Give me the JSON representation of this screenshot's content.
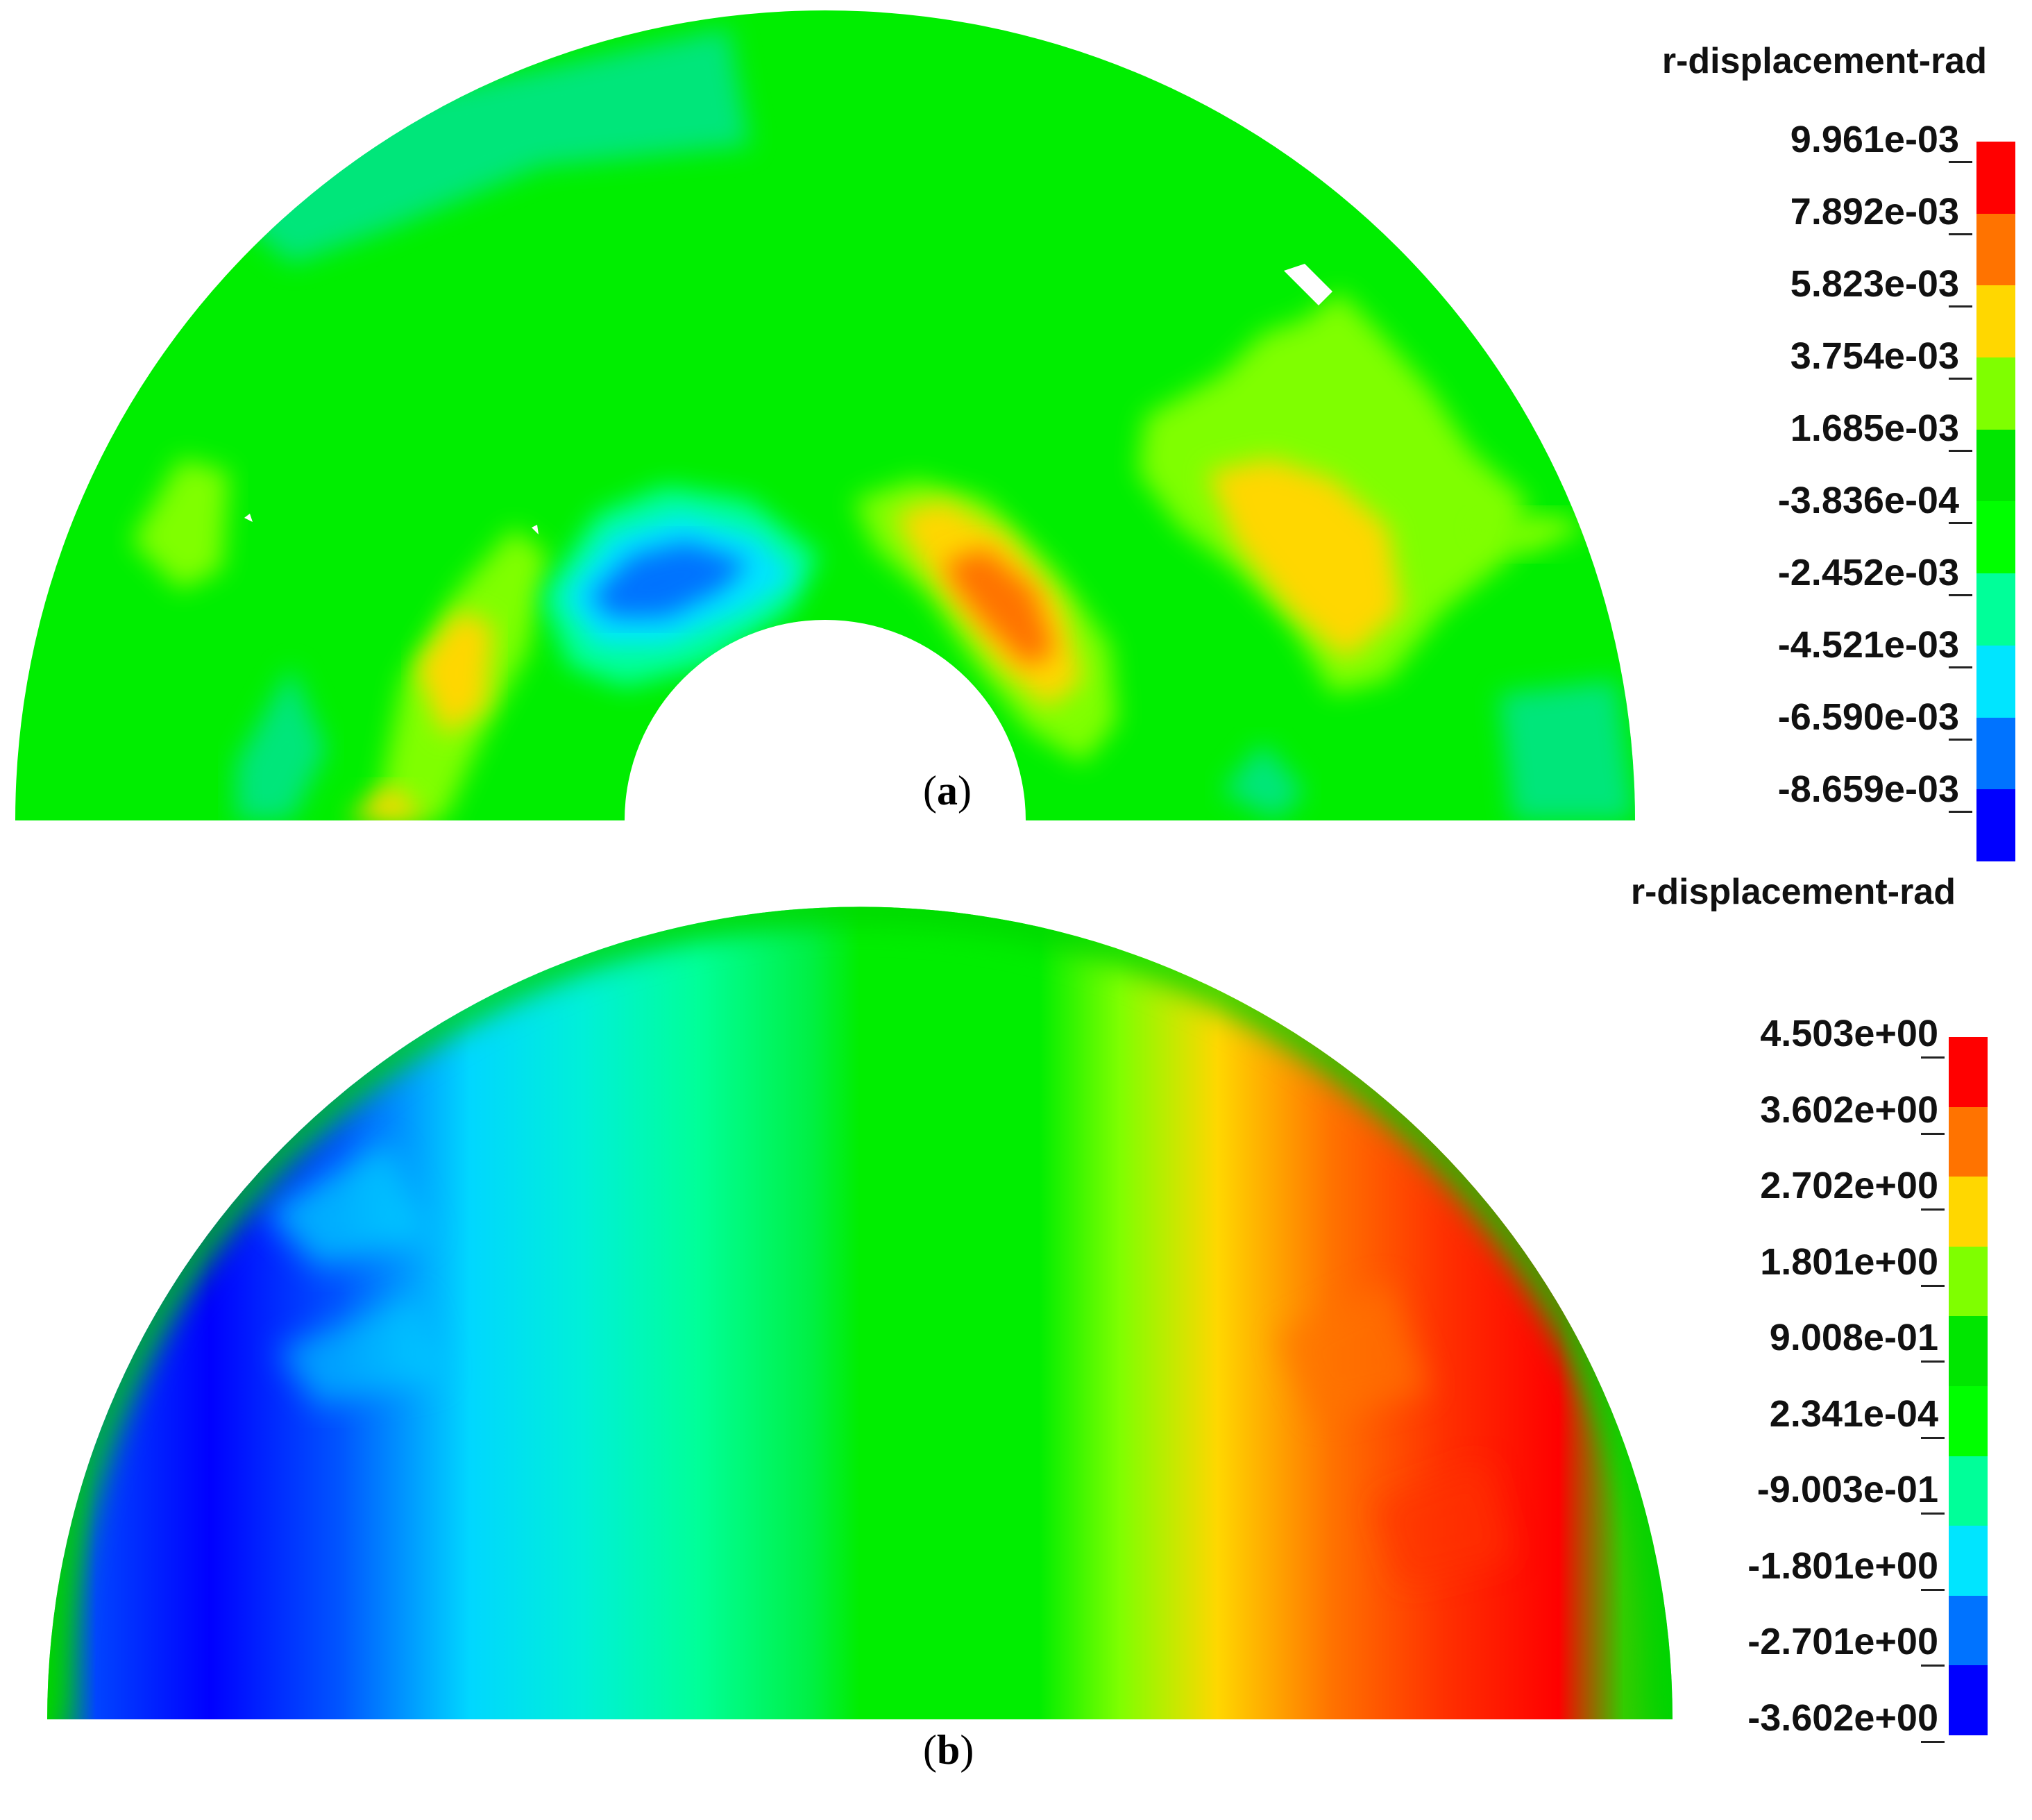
{
  "panels": [
    {
      "id": "a",
      "label": "a",
      "legend": {
        "title": "r-displacement-rad",
        "ticks": [
          "9.961e-03",
          "7.892e-03",
          "5.823e-03",
          "3.754e-03",
          "1.685e-03",
          "-3.836e-04",
          "-2.452e-03",
          "-4.521e-03",
          "-6.590e-03",
          "-8.659e-03"
        ],
        "colors": [
          "#ff0000",
          "#ff7300",
          "#ffd700",
          "#7fff00",
          "#00e600",
          "#00ff00",
          "#00ff99",
          "#00e5ff",
          "#0073ff",
          "#0000ff"
        ]
      }
    },
    {
      "id": "b",
      "label": "b",
      "legend": {
        "title": "r-displacement-rad",
        "ticks": [
          "4.503e+00",
          "3.602e+00",
          "2.702e+00",
          "1.801e+00",
          "9.008e-01",
          "2.341e-04",
          "-9.003e-01",
          "-1.801e+00",
          "-2.701e+00",
          "-3.602e+00"
        ],
        "colors": [
          "#ff0000",
          "#ff7300",
          "#ffd700",
          "#7fff00",
          "#00e600",
          "#00ff00",
          "#00ff99",
          "#00e5ff",
          "#0073ff",
          "#0000ff"
        ]
      }
    }
  ]
}
